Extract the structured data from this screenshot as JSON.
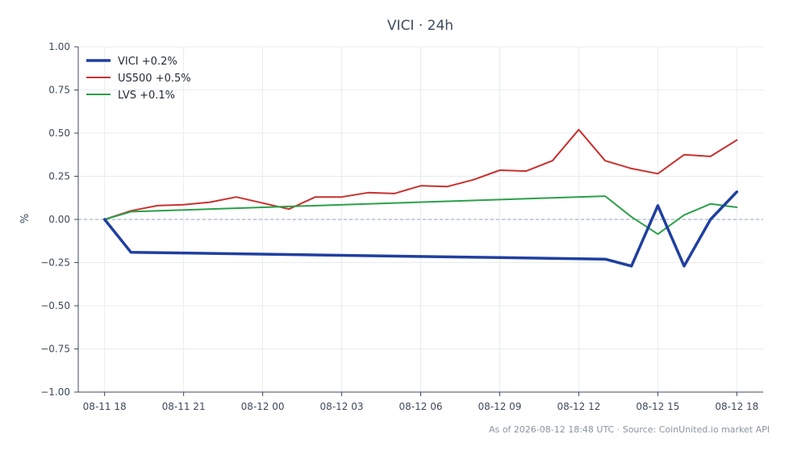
{
  "chart_data": {
    "type": "line",
    "title": "VICI · 24h",
    "xlabel": "",
    "ylabel": "%",
    "ylim": [
      -1.0,
      1.0
    ],
    "xlim": [
      "2026-08-11 17:00",
      "2026-08-12 19:00"
    ],
    "yticks": [
      "1.00",
      "0.75",
      "0.50",
      "0.25",
      "0.00",
      "−0.25",
      "−0.50",
      "−0.75",
      "−1.00"
    ],
    "ytick_values": [
      1.0,
      0.75,
      0.5,
      0.25,
      0.0,
      -0.25,
      -0.5,
      -0.75,
      -1.0
    ],
    "xticks": [
      "08-11 18",
      "08-11 21",
      "08-12 00",
      "08-12 03",
      "08-12 06",
      "08-12 09",
      "08-12 12",
      "08-12 15",
      "08-12 18"
    ],
    "xtick_values": [
      "2026-08-11 18:00",
      "2026-08-11 21:00",
      "2026-08-12 00:00",
      "2026-08-12 03:00",
      "2026-08-12 06:00",
      "2026-08-12 09:00",
      "2026-08-12 12:00",
      "2026-08-12 15:00",
      "2026-08-12 18:00"
    ],
    "grid": true,
    "baseline": 0.0,
    "legend_position": "top-left",
    "series": [
      {
        "name": "VICI +0.2%",
        "color": "#1f3fa0",
        "x": [
          "2026-08-11 18:00",
          "2026-08-11 19:00",
          "2026-08-12 13:00",
          "2026-08-12 14:00",
          "2026-08-12 15:00",
          "2026-08-12 16:00",
          "2026-08-12 17:00",
          "2026-08-12 18:00"
        ],
        "y": [
          0.0,
          -0.19,
          -0.23,
          -0.27,
          0.08,
          -0.27,
          0.0,
          0.16
        ]
      },
      {
        "name": "US500 +0.5%",
        "color": "#c8312f",
        "x": [
          "2026-08-11 18:00",
          "2026-08-11 19:00",
          "2026-08-11 20:00",
          "2026-08-11 21:00",
          "2026-08-11 22:00",
          "2026-08-11 23:00",
          "2026-08-12 00:00",
          "2026-08-12 01:00",
          "2026-08-12 02:00",
          "2026-08-12 03:00",
          "2026-08-12 04:00",
          "2026-08-12 05:00",
          "2026-08-12 06:00",
          "2026-08-12 07:00",
          "2026-08-12 08:00",
          "2026-08-12 09:00",
          "2026-08-12 10:00",
          "2026-08-12 11:00",
          "2026-08-12 12:00",
          "2026-08-12 13:00",
          "2026-08-12 14:00",
          "2026-08-12 15:00",
          "2026-08-12 16:00",
          "2026-08-12 17:00",
          "2026-08-12 18:00"
        ],
        "y": [
          0.0,
          0.05,
          0.08,
          0.085,
          0.1,
          0.13,
          0.095,
          0.06,
          0.13,
          0.13,
          0.155,
          0.15,
          0.195,
          0.19,
          0.23,
          0.285,
          0.28,
          0.34,
          0.52,
          0.34,
          0.295,
          0.265,
          0.375,
          0.365,
          0.46
        ]
      },
      {
        "name": "LVS +0.1%",
        "color": "#2aa04a",
        "x": [
          "2026-08-11 18:00",
          "2026-08-11 19:00",
          "2026-08-12 13:00",
          "2026-08-12 14:00",
          "2026-08-12 15:00",
          "2026-08-12 16:00",
          "2026-08-12 17:00",
          "2026-08-12 18:00"
        ],
        "y": [
          0.0,
          0.045,
          0.135,
          0.015,
          -0.085,
          0.025,
          0.09,
          0.07
        ]
      }
    ]
  },
  "footer": {
    "text": "As of 2026-08-12 18:48 UTC · Source: CoinUnited.io market API"
  }
}
